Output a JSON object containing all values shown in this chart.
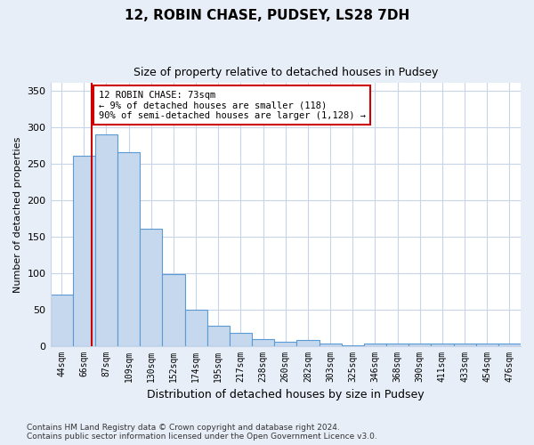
{
  "title1": "12, ROBIN CHASE, PUDSEY, LS28 7DH",
  "title2": "Size of property relative to detached houses in Pudsey",
  "xlabel": "Distribution of detached houses by size in Pudsey",
  "ylabel": "Number of detached properties",
  "categories": [
    "44sqm",
    "66sqm",
    "87sqm",
    "109sqm",
    "130sqm",
    "152sqm",
    "174sqm",
    "195sqm",
    "217sqm",
    "238sqm",
    "260sqm",
    "282sqm",
    "303sqm",
    "325sqm",
    "346sqm",
    "368sqm",
    "390sqm",
    "411sqm",
    "433sqm",
    "454sqm",
    "476sqm"
  ],
  "values": [
    70,
    260,
    290,
    265,
    160,
    98,
    49,
    28,
    18,
    9,
    6,
    8,
    3,
    1,
    3,
    3,
    3,
    3,
    3,
    3,
    3
  ],
  "bar_color": "#c5d8ed",
  "bar_edge_color": "#5b9bd5",
  "red_line_x": 1.35,
  "annotation_text": "12 ROBIN CHASE: 73sqm\n← 9% of detached houses are smaller (118)\n90% of semi-detached houses are larger (1,128) →",
  "annotation_box_color": "#ffffff",
  "annotation_box_edge": "#cc0000",
  "background_color": "#e8eef8",
  "plot_bg_color": "#ffffff",
  "grid_color": "#c8d4e8",
  "footer1": "Contains HM Land Registry data © Crown copyright and database right 2024.",
  "footer2": "Contains public sector information licensed under the Open Government Licence v3.0.",
  "ylim": [
    0,
    360
  ],
  "yticks": [
    0,
    50,
    100,
    150,
    200,
    250,
    300,
    350
  ]
}
